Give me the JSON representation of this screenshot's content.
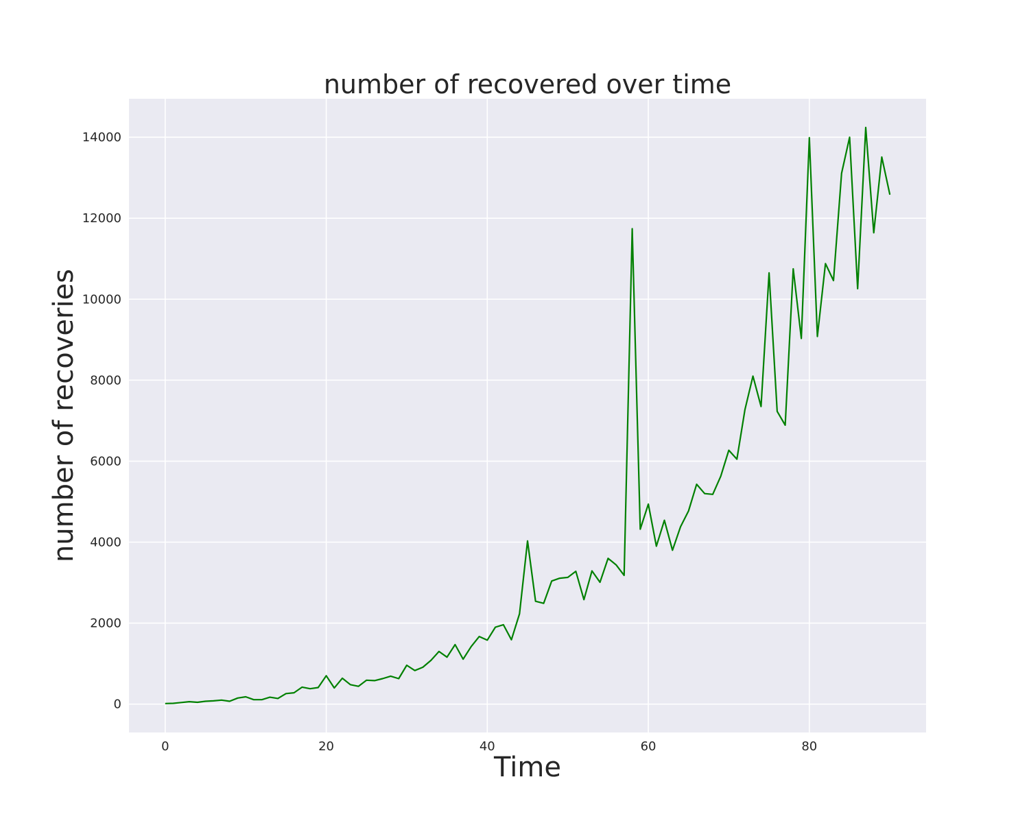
{
  "chart_data": {
    "type": "line",
    "title": "number of recovered over time",
    "xlabel": "Time",
    "ylabel": "number of recoveries",
    "xlim": [
      -4.5,
      94.5
    ],
    "ylim": [
      -700,
      14950
    ],
    "xticks": [
      0,
      20,
      40,
      60,
      80
    ],
    "yticks": [
      0,
      2000,
      4000,
      6000,
      8000,
      10000,
      12000,
      14000
    ],
    "grid": true,
    "colors": {
      "background": "#eaeaf2",
      "grid": "#ffffff",
      "line": "#008000",
      "text": "#262626"
    },
    "series": [
      {
        "name": "recovered",
        "x": [
          0,
          1,
          2,
          3,
          4,
          5,
          6,
          7,
          8,
          9,
          10,
          11,
          12,
          13,
          14,
          15,
          16,
          17,
          18,
          19,
          20,
          21,
          22,
          23,
          24,
          25,
          26,
          27,
          28,
          29,
          30,
          31,
          32,
          33,
          34,
          35,
          36,
          37,
          38,
          39,
          40,
          41,
          42,
          43,
          44,
          45,
          46,
          47,
          48,
          49,
          50,
          51,
          52,
          53,
          54,
          55,
          56,
          57,
          58,
          59,
          60,
          61,
          62,
          63,
          64,
          65,
          66,
          67,
          68,
          69,
          70,
          71,
          72,
          73,
          74,
          75,
          76,
          77,
          78,
          79,
          80,
          81,
          82,
          83,
          84,
          85,
          86,
          87,
          88,
          89,
          90
        ],
        "values": [
          15,
          20,
          40,
          60,
          45,
          70,
          80,
          100,
          70,
          150,
          180,
          110,
          110,
          170,
          140,
          260,
          280,
          420,
          380,
          410,
          700,
          400,
          640,
          480,
          440,
          590,
          580,
          630,
          690,
          630,
          960,
          830,
          910,
          1080,
          1300,
          1160,
          1470,
          1110,
          1420,
          1670,
          1580,
          1900,
          1960,
          1590,
          2230,
          4030,
          2540,
          2490,
          3040,
          3110,
          3130,
          3280,
          2580,
          3290,
          3010,
          3600,
          3440,
          3180,
          11740,
          4320,
          4940,
          3900,
          4540,
          3800,
          4380,
          4770,
          5430,
          5200,
          5180,
          5630,
          6270,
          6050,
          7270,
          8100,
          7350,
          10650,
          7230,
          6890,
          10750,
          9030,
          13990,
          9080,
          10880,
          10460,
          13110,
          14000,
          10260,
          14240,
          11640,
          13510,
          12580
        ]
      }
    ]
  }
}
